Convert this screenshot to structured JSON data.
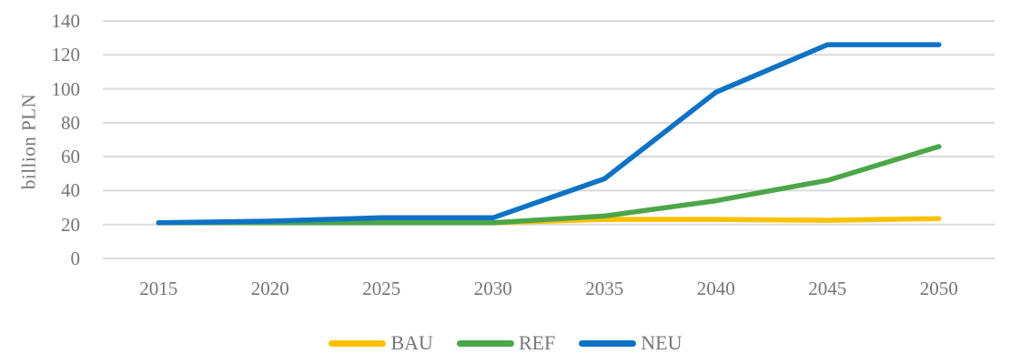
{
  "chart_data": {
    "type": "line",
    "title": "",
    "xlabel": "",
    "ylabel": "billion PLN",
    "categories": [
      "2015",
      "2020",
      "2025",
      "2030",
      "2035",
      "2040",
      "2045",
      "2050"
    ],
    "yticks": [
      0,
      20,
      40,
      60,
      80,
      100,
      120,
      140
    ],
    "ylim": [
      0,
      140
    ],
    "grid": "horizontal",
    "legend_position": "bottom-center",
    "series": [
      {
        "name": "BAU",
        "color": "#FFC000",
        "values": [
          21,
          21,
          21,
          21,
          23,
          23,
          22.5,
          23.5
        ]
      },
      {
        "name": "REF",
        "color": "#4CA647",
        "values": [
          21,
          21,
          21,
          21,
          25,
          34,
          46,
          66
        ]
      },
      {
        "name": "NEU",
        "color": "#0E72C5",
        "values": [
          21,
          22,
          24,
          24,
          47,
          98,
          126,
          126
        ]
      }
    ],
    "colors": {
      "gridline": "#DADADA",
      "axis_text": "#767676",
      "background": "#FFFFFF"
    }
  }
}
